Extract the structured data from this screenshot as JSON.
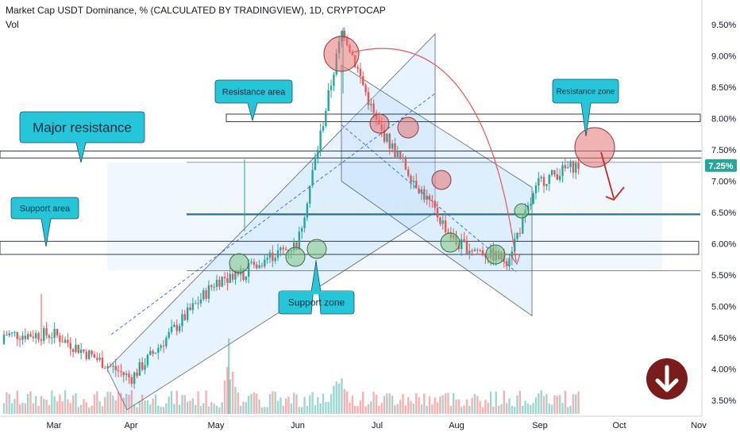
{
  "header": {
    "title": "Market Cap USDT Dominance, % (CALCULATED BY TRADINGVIEW), 1D, CRYPTOCAP",
    "indicator": "Vol"
  },
  "colors": {
    "up": "#26a69a",
    "down": "#ef5350",
    "zone_fill": "#bbdefb",
    "callout_fill": "#26c6da",
    "price_badge": "#26a69a",
    "bear_circle": "#e57373",
    "bull_circle": "#81c784",
    "down_arrow": "#7b1c1c"
  },
  "annotations": {
    "major_resistance": "Major resistance",
    "resistance_area": "Resistance area",
    "resistance_zone": "Resistance zone",
    "support_area": "Support area",
    "support_zone": "Support zone",
    "down_arrow_icon": "arrow-down-circle-icon"
  },
  "chart_data": {
    "type": "candlestick",
    "y_unit": "%",
    "y_range": [
      3.3,
      9.7
    ],
    "y_ticks": [
      "3.50%",
      "4.00%",
      "4.50%",
      "5.00%",
      "5.50%",
      "6.00%",
      "6.50%",
      "7.00%",
      "7.50%",
      "8.00%",
      "8.50%",
      "9.00%",
      "9.50%"
    ],
    "x_ticks": [
      "Mar",
      "Apr",
      "May",
      "Jun",
      "Jul",
      "Aug",
      "Sep",
      "Oct",
      "Nov"
    ],
    "last_price_label": "7.25%",
    "last_price": 7.25,
    "levels": {
      "major_resistance": [
        7.37,
        7.48
      ],
      "resistance_area": [
        7.95,
        8.07
      ],
      "support_area": [
        5.83,
        6.04
      ],
      "horizontal_support": 6.47
    },
    "series": [
      {
        "x": "Mar",
        "y": 4.55
      },
      {
        "x": "Apr",
        "y": 3.85
      },
      {
        "x": "May",
        "y": 5.4
      },
      {
        "x": "Jun",
        "y": 6.0
      },
      {
        "x": "Jun 18",
        "y": 9.45
      },
      {
        "x": "Jul",
        "y": 7.9
      },
      {
        "x": "Aug",
        "y": 6.0
      },
      {
        "x": "Aug 20",
        "y": 5.75
      },
      {
        "x": "Sep",
        "y": 7.0
      },
      {
        "x": "Sep 14",
        "y": 7.25
      }
    ]
  }
}
